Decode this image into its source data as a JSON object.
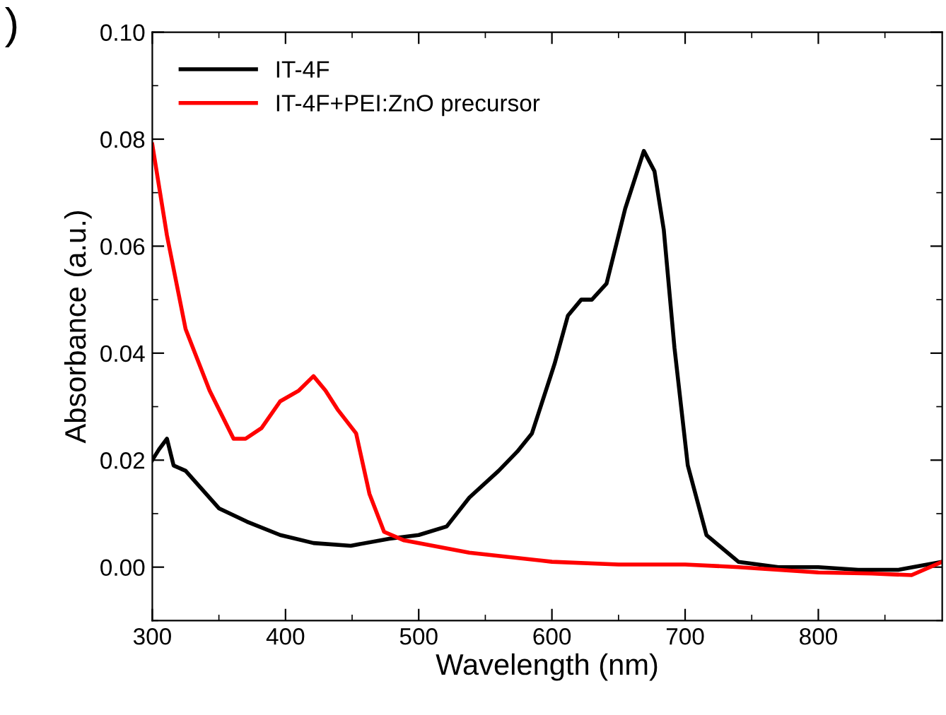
{
  "chart_data": {
    "type": "line",
    "xlabel": "Wavelength (nm)",
    "ylabel": "Absorbance (a.u.)",
    "annotations": [
      ")"
    ],
    "xlim": [
      300,
      893
    ],
    "xticks": [
      300,
      400,
      500,
      600,
      700,
      800
    ],
    "ylim": [
      -0.01,
      0.1
    ],
    "yticks": [
      {
        "value": 0,
        "label": "0.00"
      },
      {
        "value": 0.02,
        "label": "0.02"
      },
      {
        "value": 0.04,
        "label": "0.04"
      },
      {
        "value": 0.06,
        "label": "0.06"
      },
      {
        "value": 0.08,
        "label": "0.08"
      },
      {
        "value": 0.1,
        "label": "0.10"
      }
    ],
    "grid": false,
    "legend": "top left",
    "marker": "none",
    "line_style": "solid",
    "series": [
      {
        "name": "IT-4F",
        "color": "#000000",
        "x": [
          300,
          305,
          311,
          316,
          325,
          350,
          371,
          396,
          421,
          449,
          478,
          500,
          521,
          538,
          560,
          574,
          585,
          599,
          602,
          612,
          622,
          630,
          641,
          655,
          669,
          677,
          684,
          692,
          702,
          716,
          740,
          770,
          800,
          830,
          860,
          893
        ],
        "values": [
          0.02,
          0.022,
          0.024,
          0.019,
          0.018,
          0.011,
          0.0085,
          0.006,
          0.0045,
          0.004,
          0.0053,
          0.006,
          0.0076,
          0.013,
          0.018,
          0.0216,
          0.025,
          0.0357,
          0.038,
          0.047,
          0.05,
          0.05,
          0.053,
          0.067,
          0.0778,
          0.074,
          0.063,
          0.041,
          0.019,
          0.006,
          0.001,
          0.0,
          0.0,
          -0.0005,
          -0.0005,
          0.001
        ]
      },
      {
        "name": "IT-4F+PEI:ZnO precursor",
        "color": "#ff0000",
        "x": [
          300,
          311,
          325,
          343,
          361,
          370,
          382,
          396,
          410,
          421,
          430,
          439,
          453,
          463,
          474,
          489,
          538,
          600,
          650,
          700,
          740,
          800,
          840,
          870,
          893
        ],
        "values": [
          0.079,
          0.062,
          0.0445,
          0.033,
          0.024,
          0.024,
          0.026,
          0.031,
          0.033,
          0.0357,
          0.033,
          0.0295,
          0.025,
          0.0137,
          0.0066,
          0.005,
          0.0027,
          0.001,
          0.0005,
          0.0005,
          0.0,
          -0.001,
          -0.0012,
          -0.0015,
          0.001
        ]
      }
    ]
  }
}
